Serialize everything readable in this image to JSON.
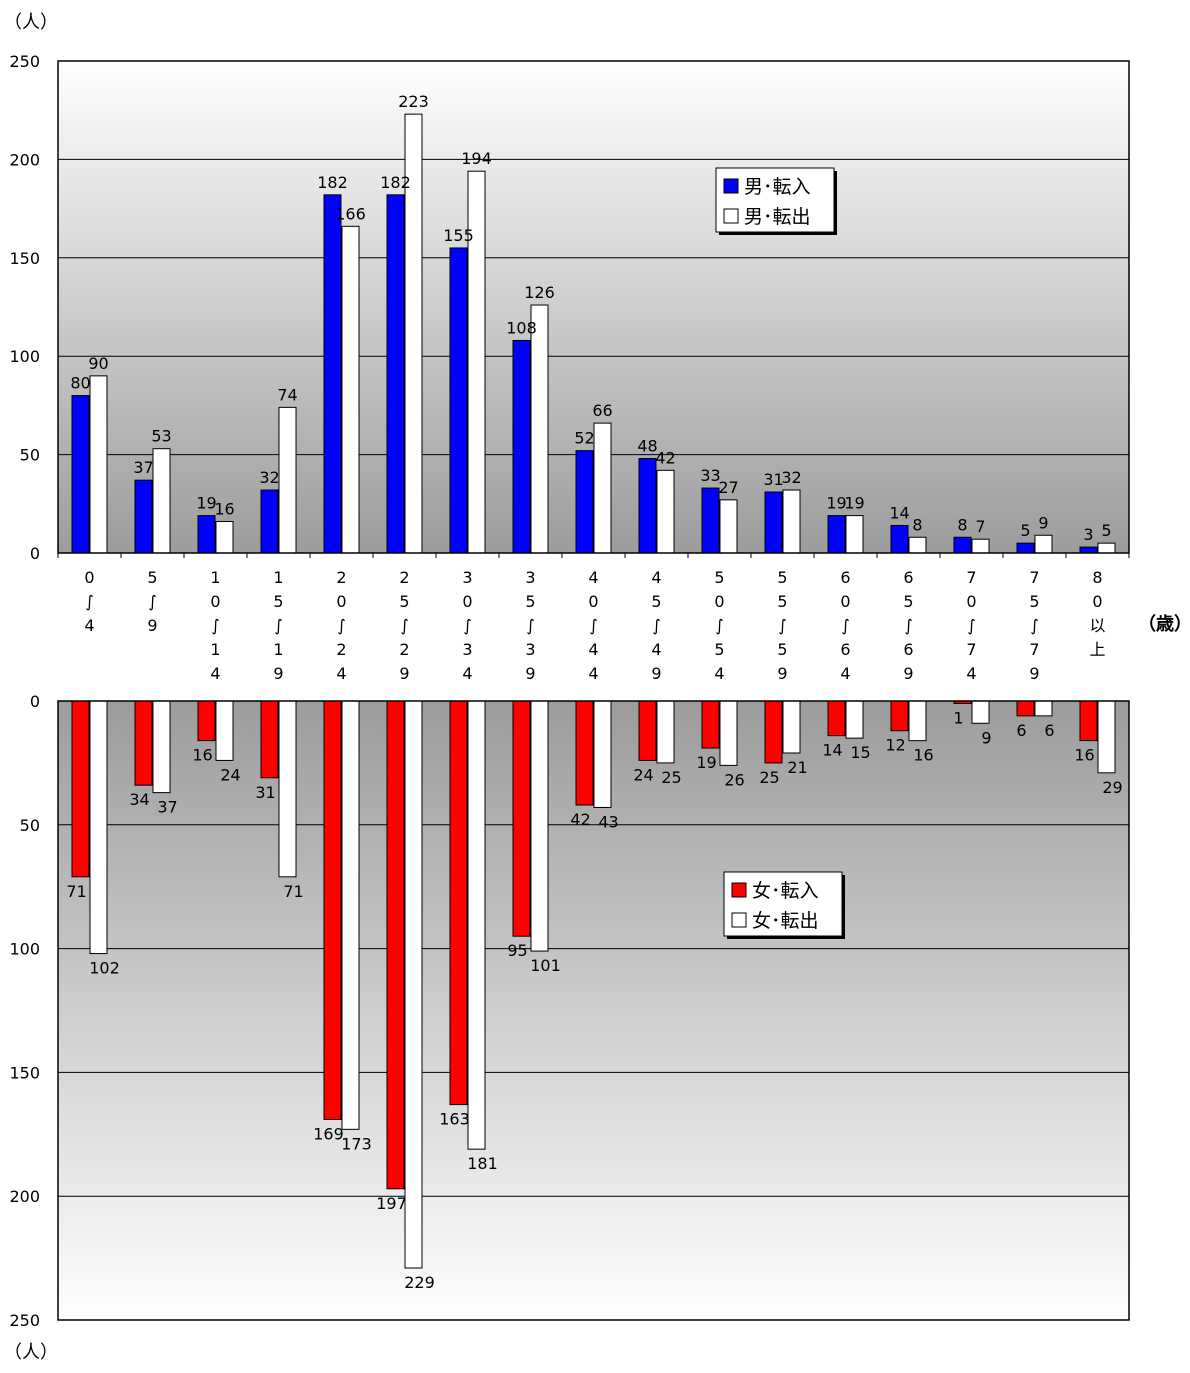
{
  "units": {
    "people_top": "（人）",
    "people_bottom": "（人）",
    "age": "（歳）"
  },
  "colors": {
    "male_in": "#0000ff",
    "female_in": "#ff0000",
    "out": "#ffffff",
    "axis": "#000000",
    "grid": "#000000"
  },
  "chart_data": [
    {
      "type": "bar",
      "name": "male",
      "categories": [
        [
          "0",
          "∫",
          "4"
        ],
        [
          "5",
          "∫",
          "9"
        ],
        [
          "1",
          "0",
          "∫",
          "1",
          "4"
        ],
        [
          "1",
          "5",
          "∫",
          "1",
          "9"
        ],
        [
          "2",
          "0",
          "∫",
          "2",
          "4"
        ],
        [
          "2",
          "5",
          "∫",
          "2",
          "9"
        ],
        [
          "3",
          "0",
          "∫",
          "3",
          "4"
        ],
        [
          "3",
          "5",
          "∫",
          "3",
          "9"
        ],
        [
          "4",
          "0",
          "∫",
          "4",
          "4"
        ],
        [
          "4",
          "5",
          "∫",
          "4",
          "9"
        ],
        [
          "5",
          "0",
          "∫",
          "5",
          "4"
        ],
        [
          "5",
          "5",
          "∫",
          "5",
          "9"
        ],
        [
          "6",
          "0",
          "∫",
          "6",
          "4"
        ],
        [
          "6",
          "5",
          "∫",
          "6",
          "9"
        ],
        [
          "7",
          "0",
          "∫",
          "7",
          "4"
        ],
        [
          "7",
          "5",
          "∫",
          "7",
          "9"
        ],
        [
          "8",
          "0",
          "以",
          "上"
        ]
      ],
      "series": [
        {
          "name": "男･転入",
          "values": [
            80,
            37,
            19,
            32,
            182,
            182,
            155,
            108,
            52,
            48,
            33,
            31,
            19,
            14,
            8,
            5,
            3
          ]
        },
        {
          "name": "男･転出",
          "values": [
            90,
            53,
            16,
            74,
            166,
            223,
            194,
            126,
            66,
            42,
            27,
            32,
            19,
            8,
            7,
            9,
            5
          ]
        }
      ],
      "yticks": [
        0,
        50,
        100,
        150,
        200,
        250
      ],
      "ylim": [
        0,
        250
      ],
      "grid": true,
      "legend": "top-right"
    },
    {
      "type": "bar",
      "name": "female",
      "series": [
        {
          "name": "女･転入",
          "values": [
            71,
            34,
            16,
            31,
            169,
            197,
            163,
            95,
            42,
            24,
            19,
            25,
            14,
            12,
            1,
            6,
            16
          ]
        },
        {
          "name": "女･転出",
          "values": [
            102,
            37,
            24,
            71,
            173,
            229,
            181,
            101,
            43,
            25,
            26,
            21,
            15,
            16,
            9,
            6,
            29
          ]
        }
      ],
      "yticks": [
        0,
        50,
        100,
        150,
        200,
        250
      ],
      "ylim": [
        0,
        250
      ],
      "inverted": true,
      "grid": true,
      "legend": "center-right"
    }
  ]
}
